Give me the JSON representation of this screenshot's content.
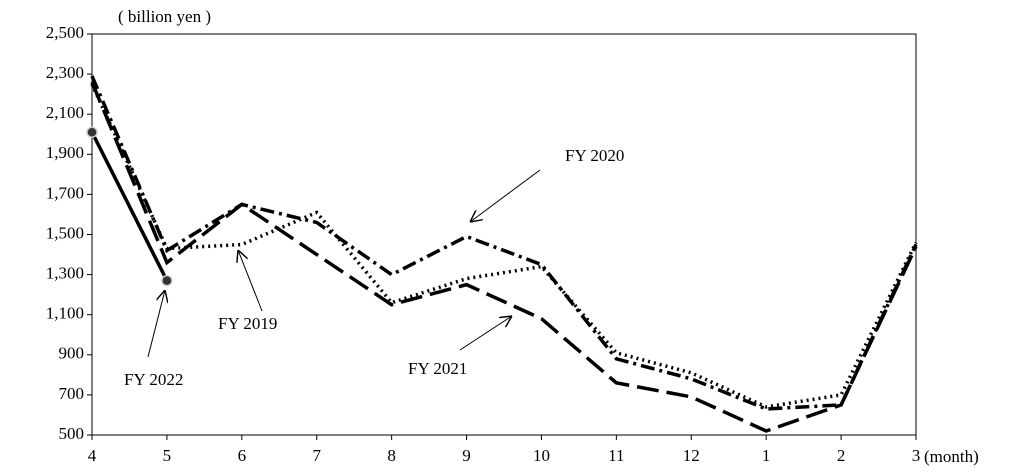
{
  "chart_data": {
    "type": "line",
    "y_unit_label": "( billion yen )",
    "x_unit_label": "(month)",
    "categories": [
      "4",
      "5",
      "6",
      "7",
      "8",
      "9",
      "10",
      "11",
      "12",
      "1",
      "2",
      "3"
    ],
    "series": [
      {
        "name": "FY 2019",
        "color": "#000000",
        "style": "dotted",
        "values": [
          2250,
          1430,
          1450,
          1610,
          1160,
          1280,
          1340,
          910,
          810,
          640,
          700,
          1460
        ]
      },
      {
        "name": "FY 2020",
        "color": "#000000",
        "style": "dashdot",
        "values": [
          2290,
          1420,
          1650,
          1560,
          1300,
          1490,
          1350,
          880,
          780,
          630,
          650,
          1450
        ]
      },
      {
        "name": "FY 2021",
        "color": "#000000",
        "style": "longdash",
        "values": [
          2260,
          1360,
          1650,
          1400,
          1150,
          1250,
          1080,
          760,
          690,
          520,
          650,
          1440
        ]
      },
      {
        "name": "FY 2022",
        "color": "#000000",
        "style": "solid",
        "markers": true,
        "values": [
          2010,
          1270,
          null,
          null,
          null,
          null,
          null,
          null,
          null,
          null,
          null,
          null
        ]
      }
    ],
    "ylim": [
      500,
      2500
    ],
    "yticks": [
      500,
      700,
      900,
      {
        "value": 1100,
        "label": "1,100"
      },
      {
        "value": 1300,
        "label": "1,300"
      },
      {
        "value": 1500,
        "label": "1,500"
      },
      {
        "value": 1700,
        "label": "1,700"
      },
      {
        "value": 1900,
        "label": "1,900"
      },
      {
        "value": 2100,
        "label": "2,100"
      },
      {
        "value": 2300,
        "label": "2,300"
      },
      {
        "value": 2500,
        "label": "2,500"
      }
    ],
    "grid": false
  }
}
